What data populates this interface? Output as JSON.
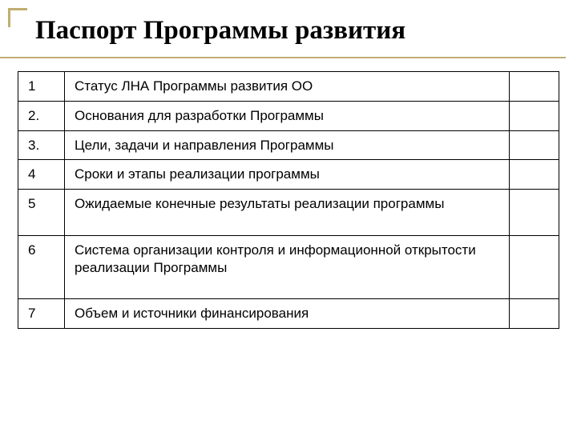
{
  "title": "Паспорт Программы развития",
  "accent_color": "#c0ad70",
  "title_fontsize": 33,
  "body_fontsize": 17,
  "table": {
    "columns": [
      {
        "width_pct": 8
      },
      {
        "width_pct": 83
      },
      {
        "width_pct": 9
      }
    ],
    "rows": [
      {
        "num": "1",
        "text": "Статус ЛНА  Программы развития ОО",
        "tall": false
      },
      {
        "num": "2.",
        "text": "Основания для разработки Программы",
        "tall": false
      },
      {
        "num": "3.",
        "text": "Цели, задачи и направления Программы",
        "tall": false
      },
      {
        "num": "4",
        "text": "Сроки и этапы реализации программы",
        "tall": false
      },
      {
        "num": "5",
        "text": "Ожидаемые конечные результаты реализации программы",
        "tall": true
      },
      {
        "num": "6",
        "text": "Система организации контроля и информационной открытости реализации Программы",
        "tall": true
      },
      {
        "num": "7",
        "text": "Объем и источники финансирования",
        "tall": false
      }
    ]
  }
}
